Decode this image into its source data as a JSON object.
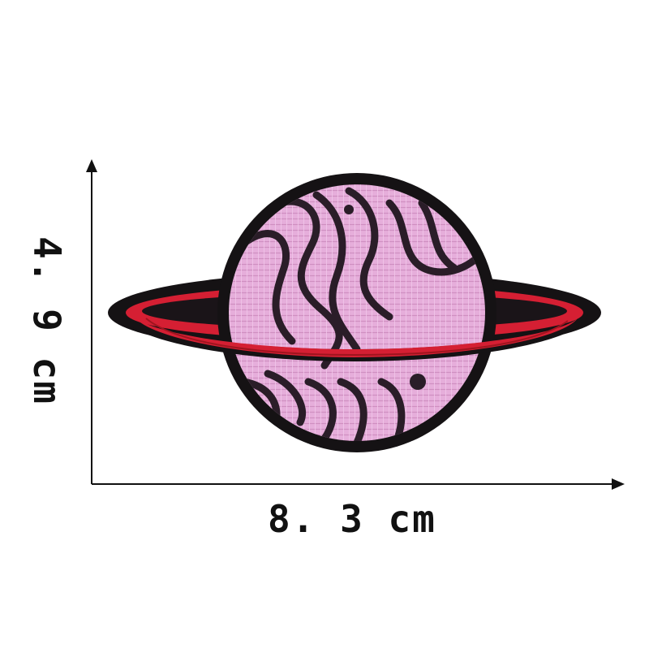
{
  "dimensions": {
    "height_label": "4. 9 cm",
    "width_label": "8. 3 cm"
  },
  "colors": {
    "background": "#ffffff",
    "arrows": "#111111",
    "patch_border": "#151214",
    "planet_pink": "#e6aedb",
    "ring_red": "#d51f33",
    "stripe_dark": "#2a1d28"
  },
  "subject": "embroidered-planet-patch"
}
